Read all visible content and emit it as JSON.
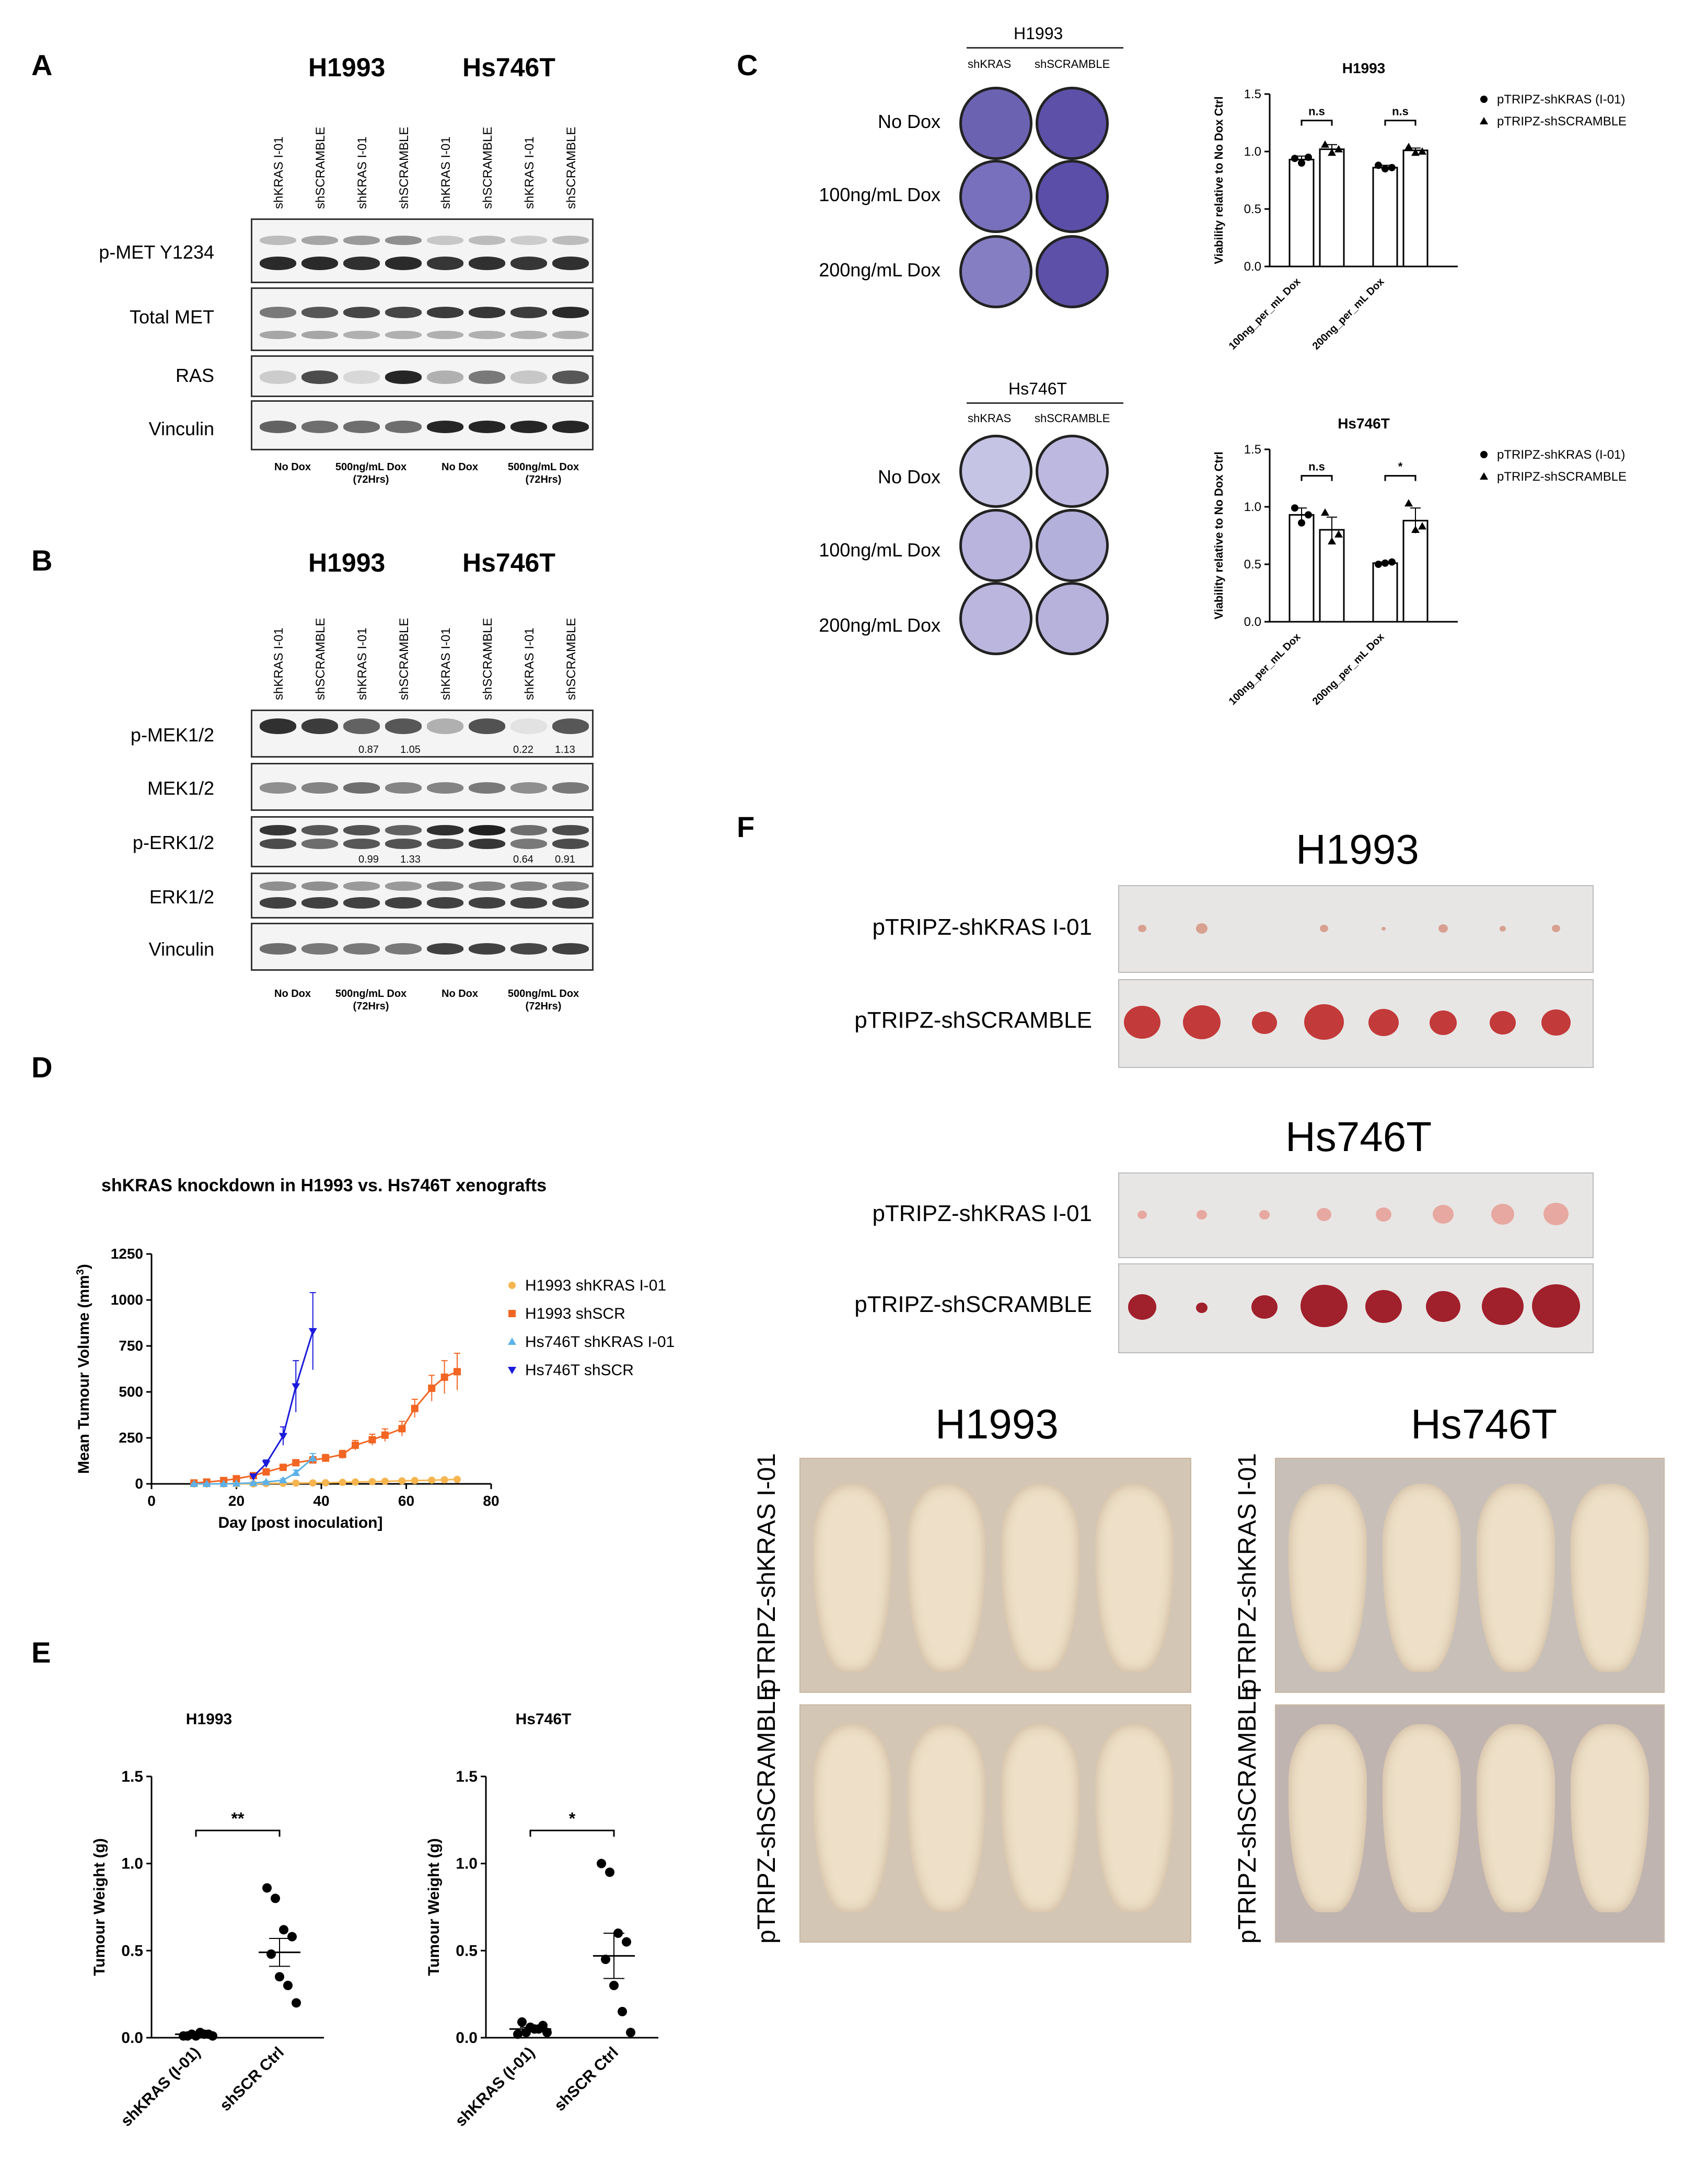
{
  "panels": {
    "A": "A",
    "B": "B",
    "C": "C",
    "D": "D",
    "E": "E",
    "F": "F"
  },
  "blots": {
    "cells": [
      "H1993",
      "Hs746T"
    ],
    "lanes": [
      "shKRAS I-01",
      "shSCRAMBLE",
      "shKRAS I-01",
      "shSCRAMBLE",
      "shKRAS I-01",
      "shSCRAMBLE",
      "shKRAS I-01",
      "shSCRAMBLE"
    ],
    "conditions": [
      "No Dox",
      "500ng/mL Dox\n(72Hrs)",
      "No Dox",
      "500ng/mL Dox\n(72Hrs)"
    ],
    "a_rows": [
      "p-MET Y1234",
      "Total MET",
      "RAS",
      "Vinculin"
    ],
    "b_rows": [
      "p-MEK1/2",
      "MEK1/2",
      "p-ERK1/2",
      "ERK1/2",
      "Vinculin"
    ],
    "b_quant_mek": [
      "0.87",
      "1.05",
      "0.22",
      "1.13"
    ],
    "b_quant_erk": [
      "0.99",
      "1.33",
      "0.64",
      "0.91"
    ]
  },
  "colony": {
    "top": {
      "cell": "H1993",
      "cols": [
        "shKRAS",
        "shSCRAMBLE"
      ]
    },
    "bottom": {
      "cell": "Hs746T",
      "cols": [
        "shKRAS",
        "shSCRAMBLE"
      ]
    },
    "rows": [
      "No Dox",
      "100ng/mL Dox",
      "200ng/mL Dox"
    ]
  },
  "chart_data": [
    {
      "id": "C-H1993",
      "type": "bar",
      "title": "H1993",
      "ylabel": "Viability relative to No Dox Ctrl",
      "categories": [
        "100ng_per_mL Dox",
        "200ng_per_mL Dox"
      ],
      "ylim": [
        0,
        1.5
      ],
      "yticks": [
        "0.0",
        "0.5",
        "1.0",
        "1.5"
      ],
      "series": [
        {
          "name": "pTRIPZ-shKRAS (I-01)",
          "values": [
            0.93,
            0.86
          ],
          "err": [
            0.03,
            0.02
          ],
          "points": [
            [
              0.94,
              0.9,
              0.95
            ],
            [
              0.88,
              0.85,
              0.86
            ]
          ]
        },
        {
          "name": "pTRIPZ-shSCRAMBLE",
          "values": [
            1.02,
            1.01
          ],
          "err": [
            0.04,
            0.02
          ],
          "points": [
            [
              1.06,
              0.99,
              1.02
            ],
            [
              1.04,
              0.99,
              1.0
            ]
          ]
        }
      ],
      "annotations": [
        "n.s",
        "n.s"
      ]
    },
    {
      "id": "C-Hs746T",
      "type": "bar",
      "title": "Hs746T",
      "ylabel": "Viability relative to No Dox Ctrl",
      "categories": [
        "100ng_per_mL Dox",
        "200ng_per_mL Dox"
      ],
      "ylim": [
        0,
        1.5
      ],
      "yticks": [
        "0.0",
        "0.5",
        "1.0",
        "1.5"
      ],
      "series": [
        {
          "name": "pTRIPZ-shKRAS (I-01)",
          "values": [
            0.93,
            0.51
          ],
          "err": [
            0.06,
            0.01
          ],
          "points": [
            [
              0.99,
              0.86,
              0.93
            ],
            [
              0.5,
              0.51,
              0.52
            ]
          ]
        },
        {
          "name": "pTRIPZ-shSCRAMBLE",
          "values": [
            0.8,
            0.88
          ],
          "err": [
            0.11,
            0.11
          ],
          "points": [
            [
              0.95,
              0.7,
              0.76
            ],
            [
              1.03,
              0.8,
              0.83
            ]
          ]
        }
      ],
      "annotations": [
        "n.s",
        "*"
      ]
    },
    {
      "id": "D",
      "type": "line",
      "title": "shKRAS knockdown in H1993 vs. Hs746T xenografts",
      "xlabel": "Day [post inoculation]",
      "ylabel": "Mean Tumour Volume (mm",
      "ylabel_sup": "3",
      "ylabel_end": ")",
      "xlim": [
        0,
        80
      ],
      "ylim": [
        0,
        1250
      ],
      "xticks": [
        "0",
        "20",
        "40",
        "60",
        "80"
      ],
      "yticks": [
        "0",
        "250",
        "500",
        "750",
        "1000",
        "1250"
      ],
      "series": [
        {
          "name": "H1993 shKRAS I-01",
          "color": "#f7b54f",
          "marker": "circle",
          "x": [
            10,
            13,
            17,
            20,
            24,
            27,
            31,
            34,
            38,
            41,
            45,
            48,
            52,
            55,
            59,
            62,
            66,
            69,
            72
          ],
          "y": [
            0,
            0,
            0,
            0,
            0,
            2,
            3,
            4,
            5,
            6,
            8,
            10,
            12,
            14,
            16,
            18,
            20,
            22,
            24
          ]
        },
        {
          "name": "H1993 shSCR",
          "color": "#f26522",
          "marker": "square",
          "x": [
            10,
            13,
            17,
            20,
            24,
            27,
            31,
            34,
            38,
            41,
            45,
            48,
            52,
            55,
            59,
            62,
            66,
            69,
            72
          ],
          "y": [
            5,
            10,
            18,
            28,
            45,
            65,
            90,
            115,
            130,
            140,
            160,
            210,
            240,
            265,
            300,
            410,
            520,
            580,
            610
          ],
          "err": [
            2,
            3,
            5,
            6,
            8,
            10,
            14,
            16,
            18,
            20,
            22,
            26,
            30,
            34,
            40,
            50,
            70,
            90,
            100
          ]
        },
        {
          "name": "Hs746T shKRAS I-01",
          "color": "#5bb1e8",
          "marker": "triangle-up",
          "x": [
            10,
            13,
            17,
            20,
            24,
            27,
            31,
            34,
            38
          ],
          "y": [
            0,
            0,
            0,
            2,
            5,
            10,
            20,
            60,
            140
          ],
          "err": [
            0,
            0,
            0,
            1,
            2,
            4,
            8,
            15,
            25
          ]
        },
        {
          "name": "Hs746T shSCR",
          "color": "#1a1adb",
          "marker": "triangle-down",
          "x": [
            24,
            27,
            31,
            34,
            38
          ],
          "y": [
            40,
            110,
            260,
            530,
            830
          ],
          "err": [
            10,
            20,
            50,
            140,
            210
          ]
        }
      ]
    },
    {
      "id": "E-H1993",
      "type": "scatter",
      "title": "H1993",
      "ylabel": "Tumour Weight (g)",
      "categories": [
        "shKRAS (I-01)",
        "shSCR Ctrl"
      ],
      "ylim": [
        0,
        1.5
      ],
      "yticks": [
        "0.0",
        "0.5",
        "1.0",
        "1.5"
      ],
      "series": [
        {
          "name": "shKRAS (I-01)",
          "points": [
            0.01,
            0.02,
            0.03,
            0.02,
            0.01,
            0.01,
            0.02,
            0.01
          ],
          "mean": 0.02,
          "sem": 0.005
        },
        {
          "name": "shSCR Ctrl",
          "points": [
            0.86,
            0.8,
            0.62,
            0.58,
            0.48,
            0.35,
            0.3,
            0.2
          ],
          "mean": 0.49,
          "sem": 0.08
        }
      ],
      "annotation": "**"
    },
    {
      "id": "E-Hs746T",
      "type": "scatter",
      "title": "Hs746T",
      "ylabel": "Tumour Weight (g)",
      "categories": [
        "shKRAS (I-01)",
        "shSCR Ctrl"
      ],
      "ylim": [
        0,
        1.5
      ],
      "yticks": [
        "0.0",
        "0.5",
        "1.0",
        "1.5"
      ],
      "series": [
        {
          "name": "shKRAS (I-01)",
          "points": [
            0.02,
            0.03,
            0.05,
            0.07,
            0.09,
            0.06,
            0.05,
            0.03
          ],
          "mean": 0.05,
          "sem": 0.01
        },
        {
          "name": "shSCR Ctrl",
          "points": [
            1.0,
            0.95,
            0.6,
            0.55,
            0.45,
            0.3,
            0.15,
            0.03
          ],
          "mean": 0.47,
          "sem": 0.13
        }
      ],
      "annotation": "*"
    }
  ],
  "panelF": {
    "h1993_title": "H1993",
    "hs746t_title": "Hs746T",
    "row_shKRAS": "pTRIPZ-shKRAS I-01",
    "row_shSCR": "pTRIPZ-shSCRAMBLE",
    "photos_h1993": "H1993",
    "photos_hs746t": "Hs746T"
  }
}
